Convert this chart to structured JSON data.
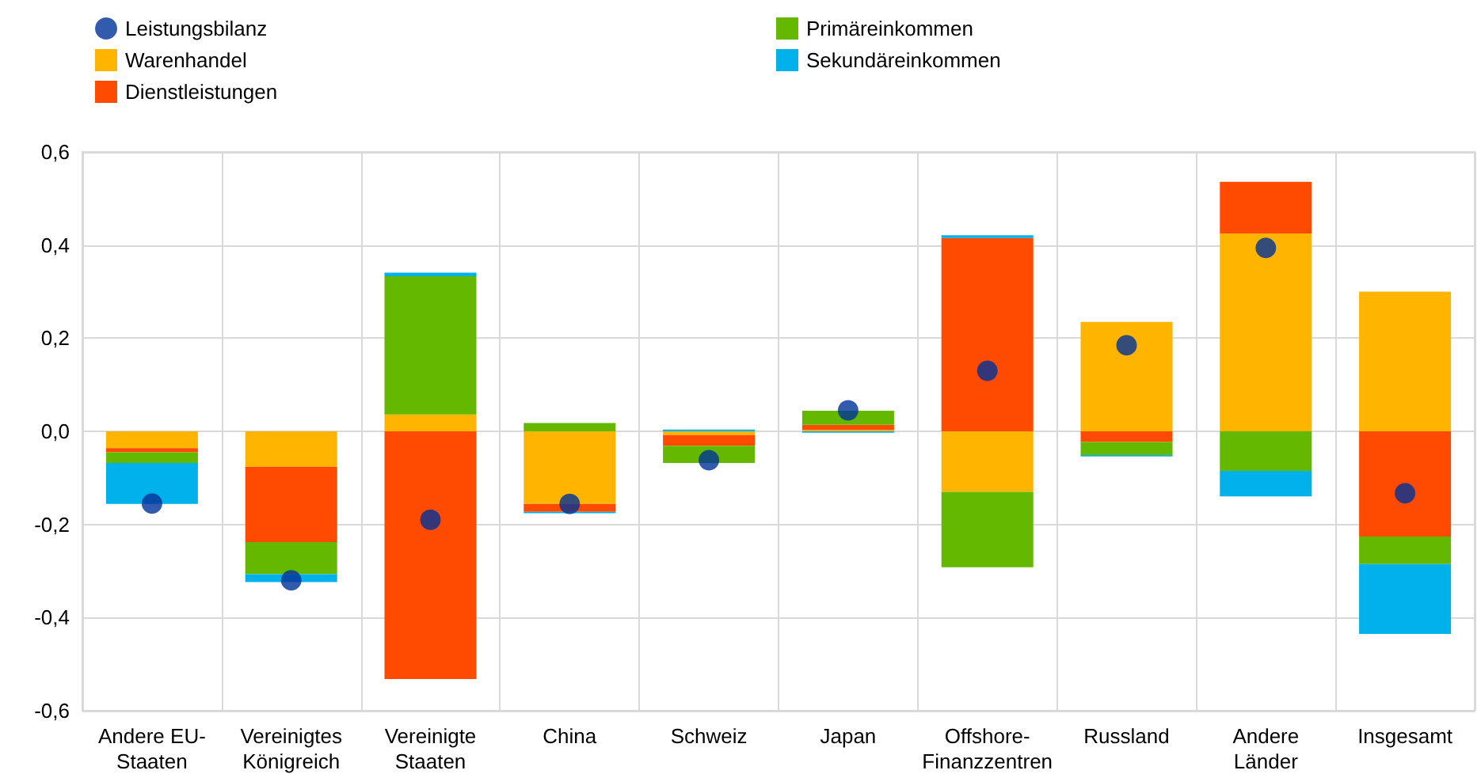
{
  "chart_data": {
    "type": "bar",
    "stacked": true,
    "categories": [
      "Andere EU-\nStaaten",
      "Vereinigtes\nKönigreich",
      "Vereinigte\nStaaten",
      "China",
      "Schweiz",
      "Japan",
      "Offshore-\nFinanzzentren",
      "Russland",
      "Andere\nLänder",
      "Insgesamt"
    ],
    "series": [
      {
        "name": "Leistungsbilanz",
        "type": "scatter",
        "color": "#003299",
        "values": [
          -0.155,
          -0.32,
          -0.19,
          -0.156,
          -0.062,
          0.045,
          0.13,
          0.185,
          0.394,
          -0.133
        ]
      },
      {
        "name": "Warenhandel",
        "color": "#ffb400",
        "values": [
          -0.036,
          -0.076,
          0.036,
          -0.156,
          -0.008,
          0.003,
          -0.13,
          0.235,
          0.425,
          0.3
        ]
      },
      {
        "name": "Dienstleistungen",
        "color": "#ff4b00",
        "values": [
          -0.009,
          -0.162,
          -0.532,
          -0.017,
          -0.023,
          0.011,
          0.415,
          -0.023,
          0.111,
          -0.226
        ]
      },
      {
        "name": "Primäreinkommen",
        "color": "#65b800",
        "values": [
          -0.023,
          -0.069,
          0.297,
          0.018,
          -0.037,
          0.03,
          -0.162,
          -0.028,
          -0.085,
          -0.059
        ]
      },
      {
        "name": "Sekundäreinkommen",
        "color": "#00b1ea",
        "values": [
          -0.088,
          -0.017,
          0.008,
          -0.003,
          0.004,
          -0.003,
          0.006,
          -0.003,
          -0.055,
          -0.15
        ]
      }
    ],
    "ylim": [
      -0.6,
      0.6
    ],
    "yticks": [
      {
        "value": -0.6,
        "label": "-0,6"
      },
      {
        "value": -0.4,
        "label": "-0,4"
      },
      {
        "value": -0.2,
        "label": "-0,2"
      },
      {
        "value": 0,
        "label": "0,0"
      },
      {
        "value": 0.2,
        "label": "0,2"
      },
      {
        "value": 0.4,
        "label": "0,4"
      },
      {
        "value": 0.6,
        "label": "0,6"
      }
    ],
    "grid": true,
    "legend": "top",
    "marker": "circle"
  }
}
